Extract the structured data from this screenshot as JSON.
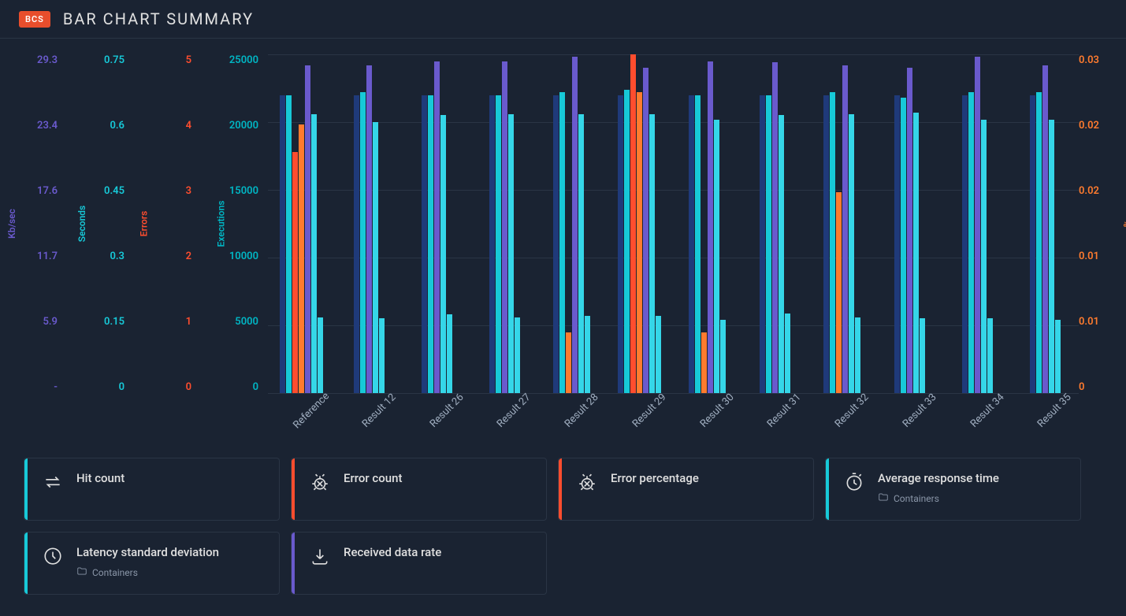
{
  "header": {
    "badge": "BCS",
    "title": "BAR CHART SUMMARY"
  },
  "colors": {
    "kbsec": "#6a5acd",
    "seconds": "#17c9d8",
    "errors": "#ff4d2e",
    "executions": "#00b6c4",
    "percent": "#ff7b2e",
    "bg": "#1a2332",
    "grid": "#2a3545",
    "text": "#e0e0e0",
    "muted": "#a0aec0",
    "series_darkblue": "#1f3a7a",
    "series_teal": "#17c9d8",
    "series_red": "#ff4d2e",
    "series_orange": "#ff7b2e",
    "series_purple": "#6a5acd",
    "series_cyan": "#35d6e8"
  },
  "chart": {
    "type": "bar",
    "y_axes_left": [
      {
        "label": "Kb/sec",
        "color": "#6a5acd",
        "ticks": [
          "29.3",
          "23.4",
          "17.6",
          "11.7",
          "5.9",
          "-"
        ]
      },
      {
        "label": "Seconds",
        "color": "#17c9d8",
        "ticks": [
          "0.75",
          "0.6",
          "0.45",
          "0.3",
          "0.15",
          "0"
        ]
      },
      {
        "label": "Errors",
        "color": "#ff4d2e",
        "ticks": [
          "5",
          "4",
          "3",
          "2",
          "1",
          "0"
        ]
      },
      {
        "label": "Executions",
        "color": "#00b6c4",
        "ticks": [
          "25000",
          "20000",
          "15000",
          "10000",
          "5000",
          "0"
        ]
      }
    ],
    "y_axis_right": {
      "label": "%",
      "color": "#ff7b2e",
      "ticks": [
        "0.03",
        "0.02",
        "0.02",
        "0.01",
        "0.01",
        "0"
      ]
    },
    "ymax_executions": 25000,
    "categories": [
      "Reference",
      "Result 12",
      "Result 26",
      "Result 27",
      "Result 28",
      "Result 29",
      "Result 30",
      "Result 31",
      "Result 32",
      "Result 33",
      "Result 34",
      "Result 35"
    ],
    "series": [
      {
        "name": "darkblue",
        "color": "#1f3a7a",
        "values": [
          22000,
          22000,
          22000,
          22000,
          22000,
          22000,
          22000,
          22000,
          22000,
          22000,
          22000,
          22000
        ]
      },
      {
        "name": "teal",
        "color": "#17c9d8",
        "values": [
          22000,
          22200,
          22000,
          22000,
          22200,
          22400,
          22000,
          22000,
          22200,
          21800,
          22200,
          22200
        ]
      },
      {
        "name": "red",
        "color": "#ff4d2e",
        "values": [
          17800,
          0,
          0,
          0,
          0,
          25000,
          0,
          0,
          0,
          0,
          0,
          0
        ]
      },
      {
        "name": "orange",
        "color": "#ff7b2e",
        "values": [
          19800,
          0,
          0,
          0,
          4500,
          22200,
          4500,
          0,
          14800,
          0,
          0,
          0
        ]
      },
      {
        "name": "purple",
        "color": "#6a5acd",
        "values": [
          24200,
          24200,
          24500,
          24500,
          24800,
          24000,
          24500,
          24400,
          24200,
          24000,
          24800,
          24200
        ]
      },
      {
        "name": "cyan-a",
        "color": "#35d6e8",
        "values": [
          20600,
          20000,
          20500,
          20600,
          20600,
          20600,
          20200,
          20500,
          20600,
          20700,
          20200,
          20200
        ]
      },
      {
        "name": "cyan-b",
        "color": "#35d6e8",
        "values": [
          5600,
          5500,
          5800,
          5600,
          5700,
          5700,
          5400,
          5900,
          5600,
          5500,
          5500,
          5400
        ]
      }
    ]
  },
  "cards": [
    {
      "accent": "#17c9d8",
      "icon": "transfer",
      "title": "Hit count",
      "sub": null
    },
    {
      "accent": "#ff4d2e",
      "icon": "bug",
      "title": "Error count",
      "sub": null
    },
    {
      "accent": "#ff4d2e",
      "icon": "bug",
      "title": "Error percentage",
      "sub": null
    },
    {
      "accent": "#17c9d8",
      "icon": "timer",
      "title": "Average response time",
      "sub": "Containers"
    },
    {
      "accent": "#17c9d8",
      "icon": "clock",
      "title": "Latency standard deviation",
      "sub": "Containers"
    },
    {
      "accent": "#6a5acd",
      "icon": "download",
      "title": "Received data rate",
      "sub": null
    }
  ],
  "sub_label": "Containers"
}
